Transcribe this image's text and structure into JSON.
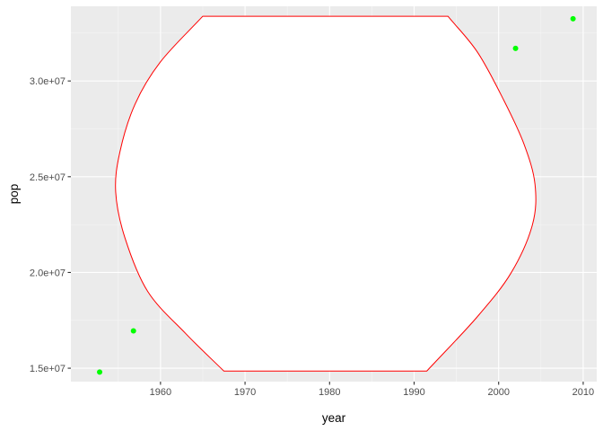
{
  "chart_data": {
    "type": "scatter",
    "xlabel": "year",
    "ylabel": "pop",
    "xlim": [
      1949.4,
      2011.6
    ],
    "ylim": [
      14300000,
      33900000
    ],
    "x_ticks": [
      1960,
      1970,
      1980,
      1990,
      2000,
      2010
    ],
    "x_tick_labels": [
      "1960",
      "1970",
      "1980",
      "1990",
      "2000",
      "2010"
    ],
    "y_ticks": [
      15000000,
      20000000,
      25000000,
      30000000
    ],
    "y_tick_labels": [
      "1.5e+07",
      "2.0e+07",
      "2.5e+07",
      "3.0e+07"
    ],
    "grid": true,
    "background": "#ebebeb",
    "series": [
      {
        "kind": "points",
        "color": "#00ff00",
        "points": [
          {
            "x": 1952.8,
            "y": 14800000
          },
          {
            "x": 1956.8,
            "y": 16950000
          },
          {
            "x": 2002.0,
            "y": 31700000
          },
          {
            "x": 2008.8,
            "y": 33250000
          }
        ]
      },
      {
        "kind": "outline",
        "fill": "#ffffff",
        "color": "#ff0000",
        "points": [
          {
            "x": 1965.0,
            "y": 33380000
          },
          {
            "x": 1994.0,
            "y": 33380000
          },
          {
            "x": 1997.5,
            "y": 31500000
          },
          {
            "x": 2000.6,
            "y": 29000000
          },
          {
            "x": 2003.0,
            "y": 26700000
          },
          {
            "x": 2004.3,
            "y": 24600000
          },
          {
            "x": 2004.0,
            "y": 22500000
          },
          {
            "x": 2001.5,
            "y": 20000000
          },
          {
            "x": 1997.5,
            "y": 17700000
          },
          {
            "x": 1991.5,
            "y": 14850000
          },
          {
            "x": 1967.5,
            "y": 14850000
          },
          {
            "x": 1963.0,
            "y": 16800000
          },
          {
            "x": 1958.5,
            "y": 19000000
          },
          {
            "x": 1955.8,
            "y": 21800000
          },
          {
            "x": 1954.7,
            "y": 24200000
          },
          {
            "x": 1955.2,
            "y": 26300000
          },
          {
            "x": 1957.0,
            "y": 28800000
          },
          {
            "x": 1960.0,
            "y": 31000000
          },
          {
            "x": 1965.0,
            "y": 33380000
          }
        ]
      }
    ]
  }
}
